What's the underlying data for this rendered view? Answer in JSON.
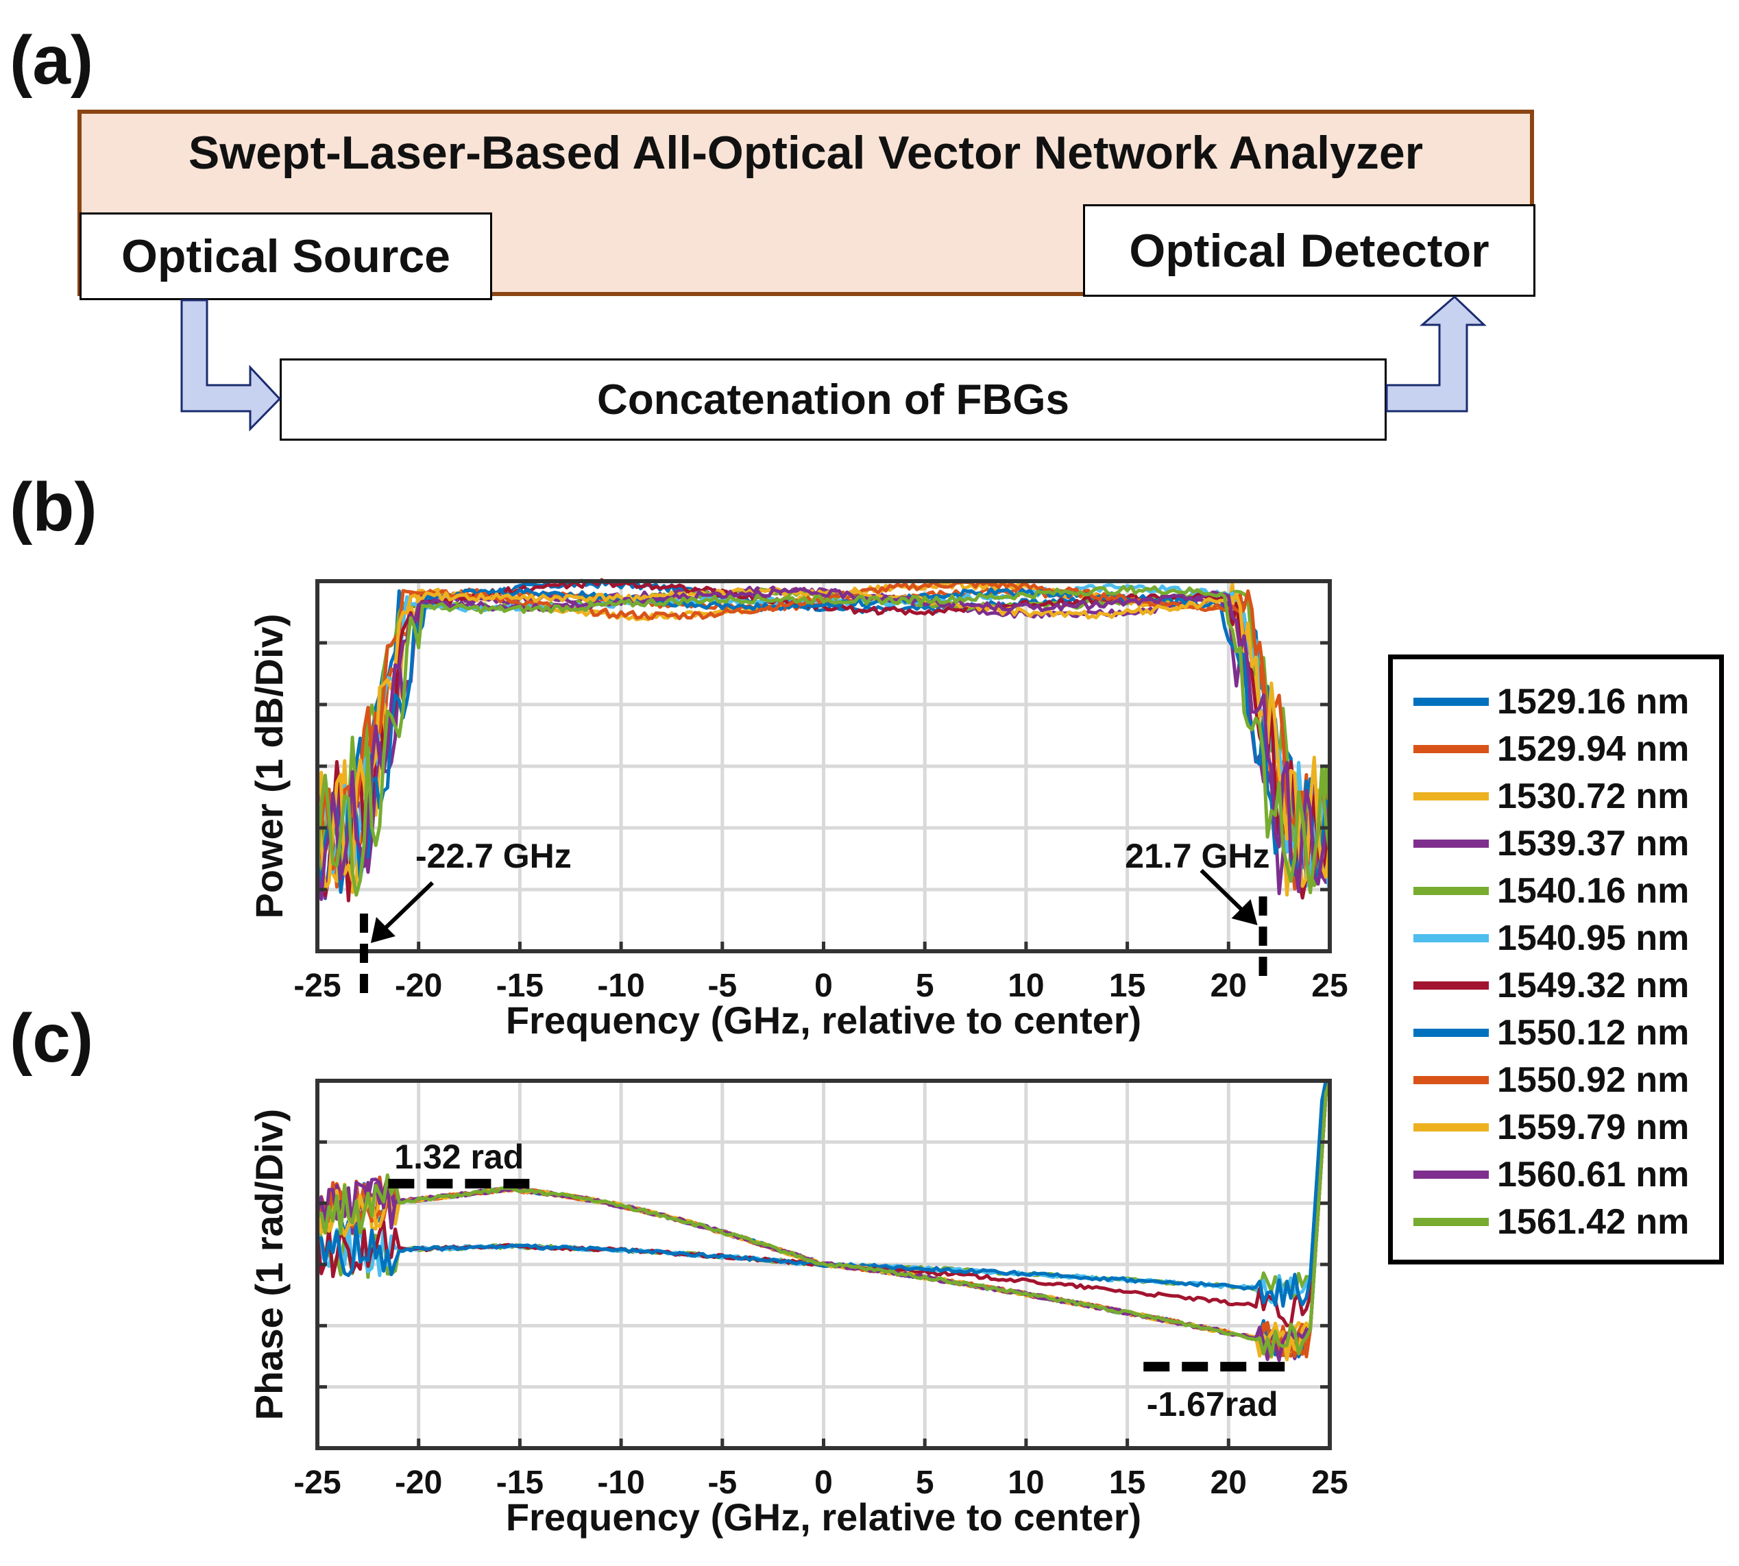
{
  "panels": {
    "a": "(a)",
    "b": "(b)",
    "c": "(c)"
  },
  "diagram": {
    "title": "Swept-Laser-Based All-Optical Vector Network Analyzer",
    "source": "Optical Source",
    "detector": "Optical Detector",
    "fbg": "Concatenation of FBGs"
  },
  "colors": {
    "analyzer_fill": "#f9e3d6",
    "analyzer_border": "#8b4513",
    "arrow_fill": "#c7d1f0",
    "grid": "#d9d9d9"
  },
  "chart_data": [
    {
      "type": "line",
      "panel": "b",
      "xlabel": "Frequency (GHz, relative to center)",
      "ylabel": "Power (1 dB/Div)",
      "xlim": [
        -25,
        25
      ],
      "xticks": [
        "-25",
        "-20",
        "-15",
        "-10",
        "-5",
        "0",
        "5",
        "10",
        "15",
        "20",
        "25"
      ],
      "ylim": [
        -6,
        0
      ],
      "grid": true,
      "annotations": [
        {
          "text": "-22.7 GHz",
          "x": -22.7
        },
        {
          "text": "21.7 GHz",
          "x": 21.7
        }
      ]
    },
    {
      "type": "line",
      "panel": "c",
      "xlabel": "Frequency (GHz, relative to center)",
      "ylabel": "Phase (1 rad/Div)",
      "xlim": [
        -25,
        25
      ],
      "xticks": [
        "-25",
        "-20",
        "-15",
        "-10",
        "-5",
        "0",
        "5",
        "10",
        "15",
        "20",
        "25"
      ],
      "ylim": [
        -3,
        3
      ],
      "grid": true,
      "annotations": [
        {
          "text": "1.32 rad",
          "y": 1.32
        },
        {
          "text": "-1.67rad",
          "y": -1.67
        }
      ]
    }
  ],
  "legend": [
    {
      "label": "1529.16 nm",
      "color": "#0072bd"
    },
    {
      "label": "1529.94 nm",
      "color": "#d95319"
    },
    {
      "label": "1530.72 nm",
      "color": "#edb120"
    },
    {
      "label": "1539.37 nm",
      "color": "#7e2f8e"
    },
    {
      "label": "1540.16 nm",
      "color": "#77ac30"
    },
    {
      "label": "1540.95 nm",
      "color": "#4dbeee"
    },
    {
      "label": "1549.32 nm",
      "color": "#a2142f"
    },
    {
      "label": "1550.12 nm",
      "color": "#0072bd"
    },
    {
      "label": "1550.92 nm",
      "color": "#d95319"
    },
    {
      "label": "1559.79 nm",
      "color": "#edb120"
    },
    {
      "label": "1560.61 nm",
      "color": "#7e2f8e"
    },
    {
      "label": "1561.42 nm",
      "color": "#77ac30"
    }
  ]
}
